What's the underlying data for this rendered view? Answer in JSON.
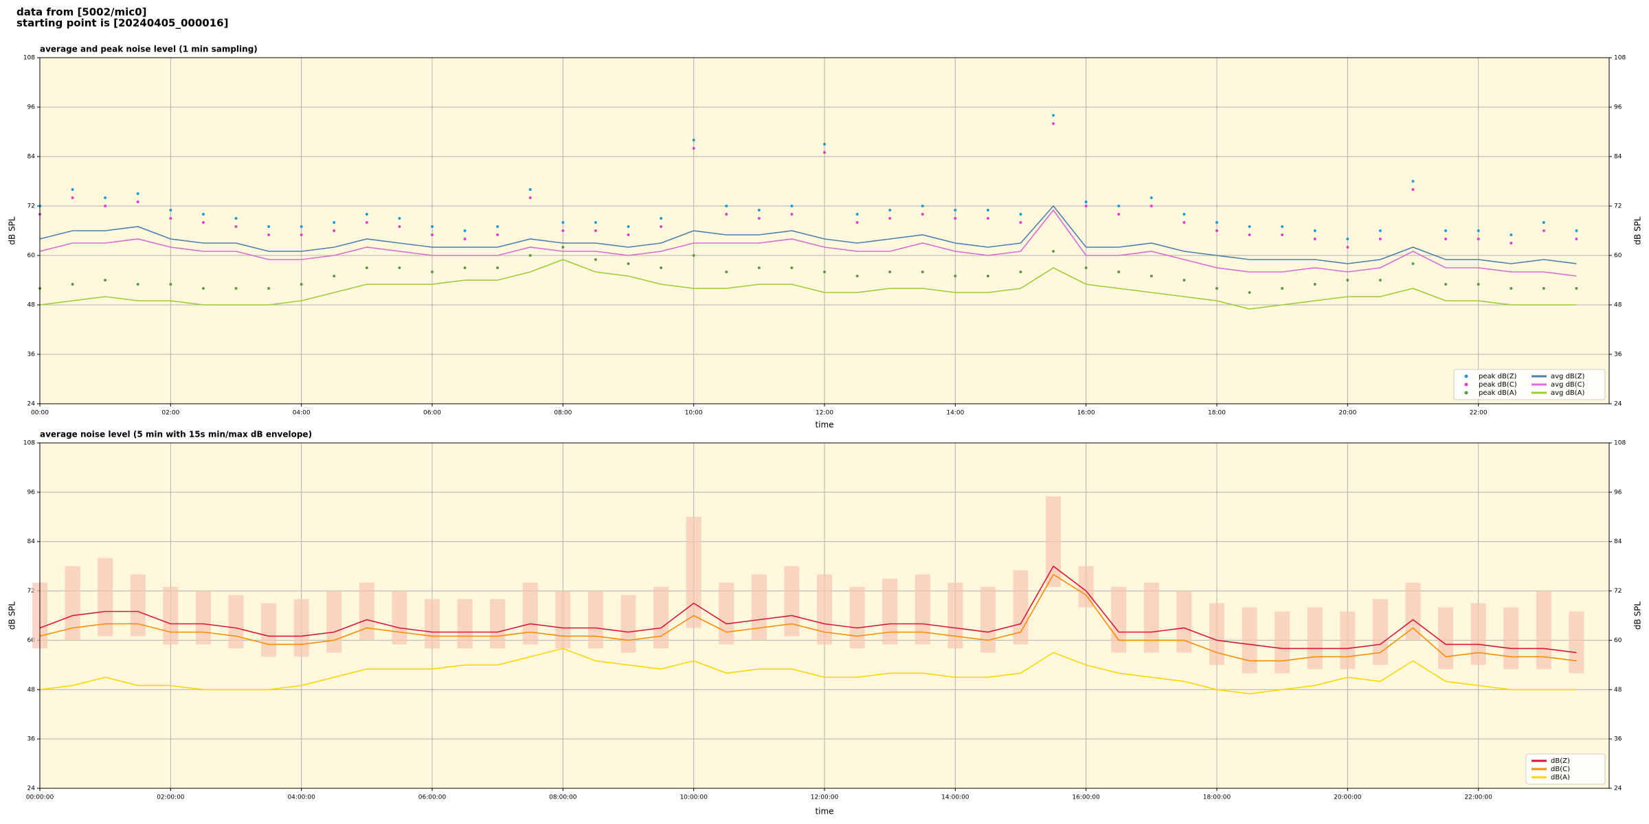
{
  "header": {
    "source": "data from [5002/mic0]",
    "start": "starting point is [20240405_000016]"
  },
  "chart_data": [
    {
      "type": "line",
      "title": "average and peak noise level (1 min sampling)",
      "xlabel": "time",
      "ylabel": "dB SPL",
      "x": [
        0,
        0.5,
        1,
        1.5,
        2,
        2.5,
        3,
        3.5,
        4,
        4.5,
        5,
        5.5,
        6,
        6.5,
        7,
        7.5,
        8,
        8.5,
        9,
        9.5,
        10,
        10.5,
        11,
        11.5,
        12,
        12.5,
        13,
        13.5,
        14,
        14.5,
        15,
        15.5,
        16,
        16.5,
        17,
        17.5,
        18,
        18.5,
        19,
        19.5,
        20,
        20.5,
        21,
        21.5,
        22,
        22.5,
        23,
        23.5
      ],
      "xlim": [
        0,
        24
      ],
      "ylim": [
        24,
        108
      ],
      "yticks": [
        24,
        36,
        48,
        60,
        72,
        84,
        96,
        108
      ],
      "xticks": [
        {
          "value": 0,
          "label": "00:00"
        },
        {
          "value": 2,
          "label": "02:00"
        },
        {
          "value": 4,
          "label": "04:00"
        },
        {
          "value": 6,
          "label": "06:00"
        },
        {
          "value": 8,
          "label": "08:00"
        },
        {
          "value": 10,
          "label": "10:00"
        },
        {
          "value": 12,
          "label": "12:00"
        },
        {
          "value": 14,
          "label": "14:00"
        },
        {
          "value": 16,
          "label": "16:00"
        },
        {
          "value": 18,
          "label": "18:00"
        },
        {
          "value": 20,
          "label": "20:00"
        },
        {
          "value": 22,
          "label": "22:00"
        }
      ],
      "grid": true,
      "background": "#fff8dc",
      "legend": "lower right",
      "legend_columns": 2,
      "series": [
        {
          "name": "peak dB(Z)",
          "kind": "scatter",
          "color": "#1f9ad6",
          "values": [
            72,
            76,
            74,
            75,
            71,
            70,
            69,
            67,
            67,
            68,
            70,
            69,
            67,
            66,
            67,
            76,
            68,
            68,
            67,
            69,
            88,
            72,
            71,
            72,
            87,
            70,
            71,
            72,
            71,
            71,
            70,
            94,
            73,
            72,
            74,
            70,
            68,
            67,
            67,
            66,
            64,
            66,
            78,
            66,
            66,
            65,
            68,
            66
          ]
        },
        {
          "name": "peak dB(C)",
          "kind": "scatter",
          "color": "#e040d0",
          "values": [
            70,
            74,
            72,
            73,
            69,
            68,
            67,
            65,
            65,
            66,
            68,
            67,
            65,
            64,
            65,
            74,
            66,
            66,
            65,
            67,
            86,
            70,
            69,
            70,
            85,
            68,
            69,
            70,
            69,
            69,
            68,
            92,
            72,
            70,
            72,
            68,
            66,
            65,
            65,
            64,
            62,
            64,
            76,
            64,
            64,
            63,
            66,
            64
          ]
        },
        {
          "name": "peak dB(A)",
          "kind": "scatter",
          "color": "#5a9a40",
          "values": [
            52,
            53,
            54,
            53,
            53,
            52,
            52,
            52,
            53,
            55,
            57,
            57,
            56,
            57,
            57,
            60,
            62,
            59,
            58,
            57,
            60,
            56,
            57,
            57,
            56,
            55,
            56,
            56,
            55,
            55,
            56,
            61,
            57,
            56,
            55,
            54,
            52,
            51,
            52,
            53,
            54,
            54,
            58,
            53,
            53,
            52,
            52,
            52
          ]
        },
        {
          "name": "avg dB(Z)",
          "kind": "line",
          "color": "#4a7fb0",
          "values": [
            64,
            66,
            66,
            67,
            64,
            63,
            63,
            61,
            61,
            62,
            64,
            63,
            62,
            62,
            62,
            64,
            63,
            63,
            62,
            63,
            66,
            65,
            65,
            66,
            64,
            63,
            64,
            65,
            63,
            62,
            63,
            72,
            62,
            62,
            63,
            61,
            60,
            59,
            59,
            59,
            58,
            59,
            62,
            59,
            59,
            58,
            59,
            58
          ]
        },
        {
          "name": "avg dB(C)",
          "kind": "line",
          "color": "#d96ad6",
          "values": [
            61,
            63,
            63,
            64,
            62,
            61,
            61,
            59,
            59,
            60,
            62,
            61,
            60,
            60,
            60,
            62,
            61,
            61,
            60,
            61,
            63,
            63,
            63,
            64,
            62,
            61,
            61,
            63,
            61,
            60,
            61,
            71,
            60,
            60,
            61,
            59,
            57,
            56,
            56,
            57,
            56,
            57,
            61,
            57,
            57,
            56,
            56,
            55
          ]
        },
        {
          "name": "avg dB(A)",
          "kind": "line",
          "color": "#9acd32",
          "values": [
            48,
            49,
            50,
            49,
            49,
            48,
            48,
            48,
            49,
            51,
            53,
            53,
            53,
            54,
            54,
            56,
            59,
            56,
            55,
            53,
            52,
            52,
            53,
            53,
            51,
            51,
            52,
            52,
            51,
            51,
            52,
            57,
            53,
            52,
            51,
            50,
            49,
            47,
            48,
            49,
            50,
            50,
            52,
            49,
            49,
            48,
            48,
            48
          ]
        }
      ]
    },
    {
      "type": "line",
      "title": "average noise level (5 min with 15s min/max dB envelope)",
      "xlabel": "time",
      "ylabel": "dB SPL",
      "x": [
        0,
        0.5,
        1,
        1.5,
        2,
        2.5,
        3,
        3.5,
        4,
        4.5,
        5,
        5.5,
        6,
        6.5,
        7,
        7.5,
        8,
        8.5,
        9,
        9.5,
        10,
        10.5,
        11,
        11.5,
        12,
        12.5,
        13,
        13.5,
        14,
        14.5,
        15,
        15.5,
        16,
        16.5,
        17,
        17.5,
        18,
        18.5,
        19,
        19.5,
        20,
        20.5,
        21,
        21.5,
        22,
        22.5,
        23,
        23.5
      ],
      "xlim": [
        0,
        24
      ],
      "ylim": [
        24,
        108
      ],
      "yticks": [
        24,
        36,
        48,
        60,
        72,
        84,
        96,
        108
      ],
      "xticks": [
        {
          "value": 0,
          "label": "00:00:00"
        },
        {
          "value": 2,
          "label": "02:00:00"
        },
        {
          "value": 4,
          "label": "04:00:00"
        },
        {
          "value": 6,
          "label": "06:00:00"
        },
        {
          "value": 8,
          "label": "08:00:00"
        },
        {
          "value": 10,
          "label": "10:00:00"
        },
        {
          "value": 12,
          "label": "12:00:00"
        },
        {
          "value": 14,
          "label": "14:00:00"
        },
        {
          "value": 16,
          "label": "16:00:00"
        },
        {
          "value": 18,
          "label": "18:00:00"
        },
        {
          "value": 20,
          "label": "20:00:00"
        },
        {
          "value": 22,
          "label": "22:00:00"
        }
      ],
      "grid": true,
      "background": "#fff8dc",
      "legend": "lower right",
      "legend_columns": 1,
      "envelope_color": "#f7c4b0",
      "envelope_min": [
        58,
        60,
        61,
        61,
        59,
        59,
        58,
        56,
        56,
        57,
        60,
        59,
        58,
        58,
        58,
        59,
        58,
        58,
        57,
        58,
        63,
        59,
        60,
        61,
        59,
        58,
        59,
        59,
        58,
        57,
        59,
        73,
        68,
        57,
        57,
        57,
        54,
        52,
        52,
        53,
        53,
        54,
        60,
        53,
        54,
        53,
        53,
        52
      ],
      "envelope_max": [
        74,
        78,
        80,
        76,
        73,
        72,
        71,
        69,
        70,
        72,
        74,
        72,
        70,
        70,
        70,
        74,
        72,
        72,
        71,
        73,
        90,
        74,
        76,
        78,
        76,
        73,
        75,
        76,
        74,
        73,
        77,
        95,
        78,
        73,
        74,
        72,
        69,
        68,
        67,
        68,
        67,
        70,
        74,
        68,
        69,
        68,
        72,
        67
      ],
      "series": [
        {
          "name": "dB(Z)",
          "kind": "line",
          "color": "#dc143c",
          "values": [
            63,
            66,
            67,
            67,
            64,
            64,
            63,
            61,
            61,
            62,
            65,
            63,
            62,
            62,
            62,
            64,
            63,
            63,
            62,
            63,
            69,
            64,
            65,
            66,
            64,
            63,
            64,
            64,
            63,
            62,
            64,
            78,
            72,
            62,
            62,
            63,
            60,
            59,
            58,
            58,
            58,
            59,
            65,
            59,
            59,
            58,
            58,
            57
          ]
        },
        {
          "name": "dB(C)",
          "kind": "line",
          "color": "#ff8c00",
          "values": [
            61,
            63,
            64,
            64,
            62,
            62,
            61,
            59,
            59,
            60,
            63,
            62,
            61,
            61,
            61,
            62,
            61,
            61,
            60,
            61,
            66,
            62,
            63,
            64,
            62,
            61,
            62,
            62,
            61,
            60,
            62,
            76,
            71,
            60,
            60,
            60,
            57,
            55,
            55,
            56,
            56,
            57,
            63,
            56,
            57,
            56,
            56,
            55
          ]
        },
        {
          "name": "dB(A)",
          "kind": "line",
          "color": "#ffd700",
          "values": [
            48,
            49,
            51,
            49,
            49,
            48,
            48,
            48,
            49,
            51,
            53,
            53,
            53,
            54,
            54,
            56,
            58,
            55,
            54,
            53,
            55,
            52,
            53,
            53,
            51,
            51,
            52,
            52,
            51,
            51,
            52,
            57,
            54,
            52,
            51,
            50,
            48,
            47,
            48,
            49,
            51,
            50,
            55,
            50,
            49,
            48,
            48,
            48
          ]
        }
      ]
    }
  ]
}
